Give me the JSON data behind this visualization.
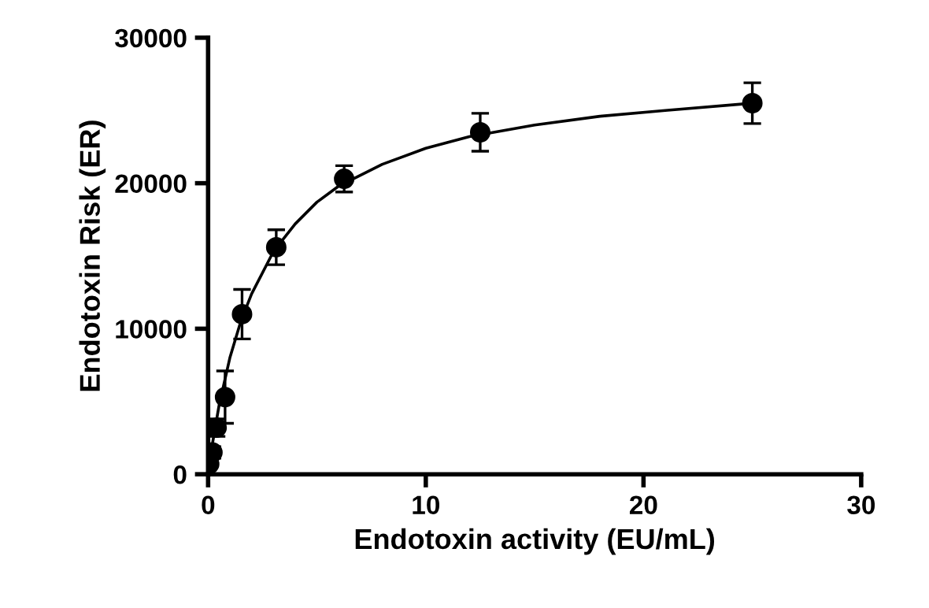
{
  "chart_data": {
    "type": "scatter",
    "xlabel": "Endotoxin activity (EU/mL)",
    "ylabel": "Endotoxin Risk (ER)",
    "xlim": [
      0,
      30
    ],
    "xticks": [
      0,
      10,
      20,
      30
    ],
    "ylim": [
      0,
      30000
    ],
    "yticks": [
      0,
      10000,
      20000,
      30000
    ],
    "grid": false,
    "marker": "circle",
    "series": [
      {
        "color": "#000000",
        "x": [
          0.05,
          0.2,
          0.39,
          0.78,
          1.56,
          3.13,
          6.25,
          12.5,
          25
        ],
        "values": [
          700,
          1500,
          3200,
          5300,
          11000,
          15600,
          20300,
          23500,
          25500
        ],
        "errors": [
          null,
          400,
          600,
          1800,
          1700,
          1200,
          900,
          1300,
          1400
        ]
      },
      {
        "type": "line",
        "color": "#000000",
        "marker": "none",
        "line_style": "solid",
        "x": [
          0,
          0.2,
          0.5,
          1,
          1.5,
          2,
          3,
          4,
          5,
          6,
          8,
          10,
          12,
          15,
          18,
          21,
          25
        ],
        "values": [
          0,
          2100,
          4700,
          8000,
          10500,
          12400,
          15300,
          17200,
          18700,
          19800,
          21300,
          22400,
          23200,
          24000,
          24600,
          25000,
          25500
        ]
      }
    ]
  }
}
